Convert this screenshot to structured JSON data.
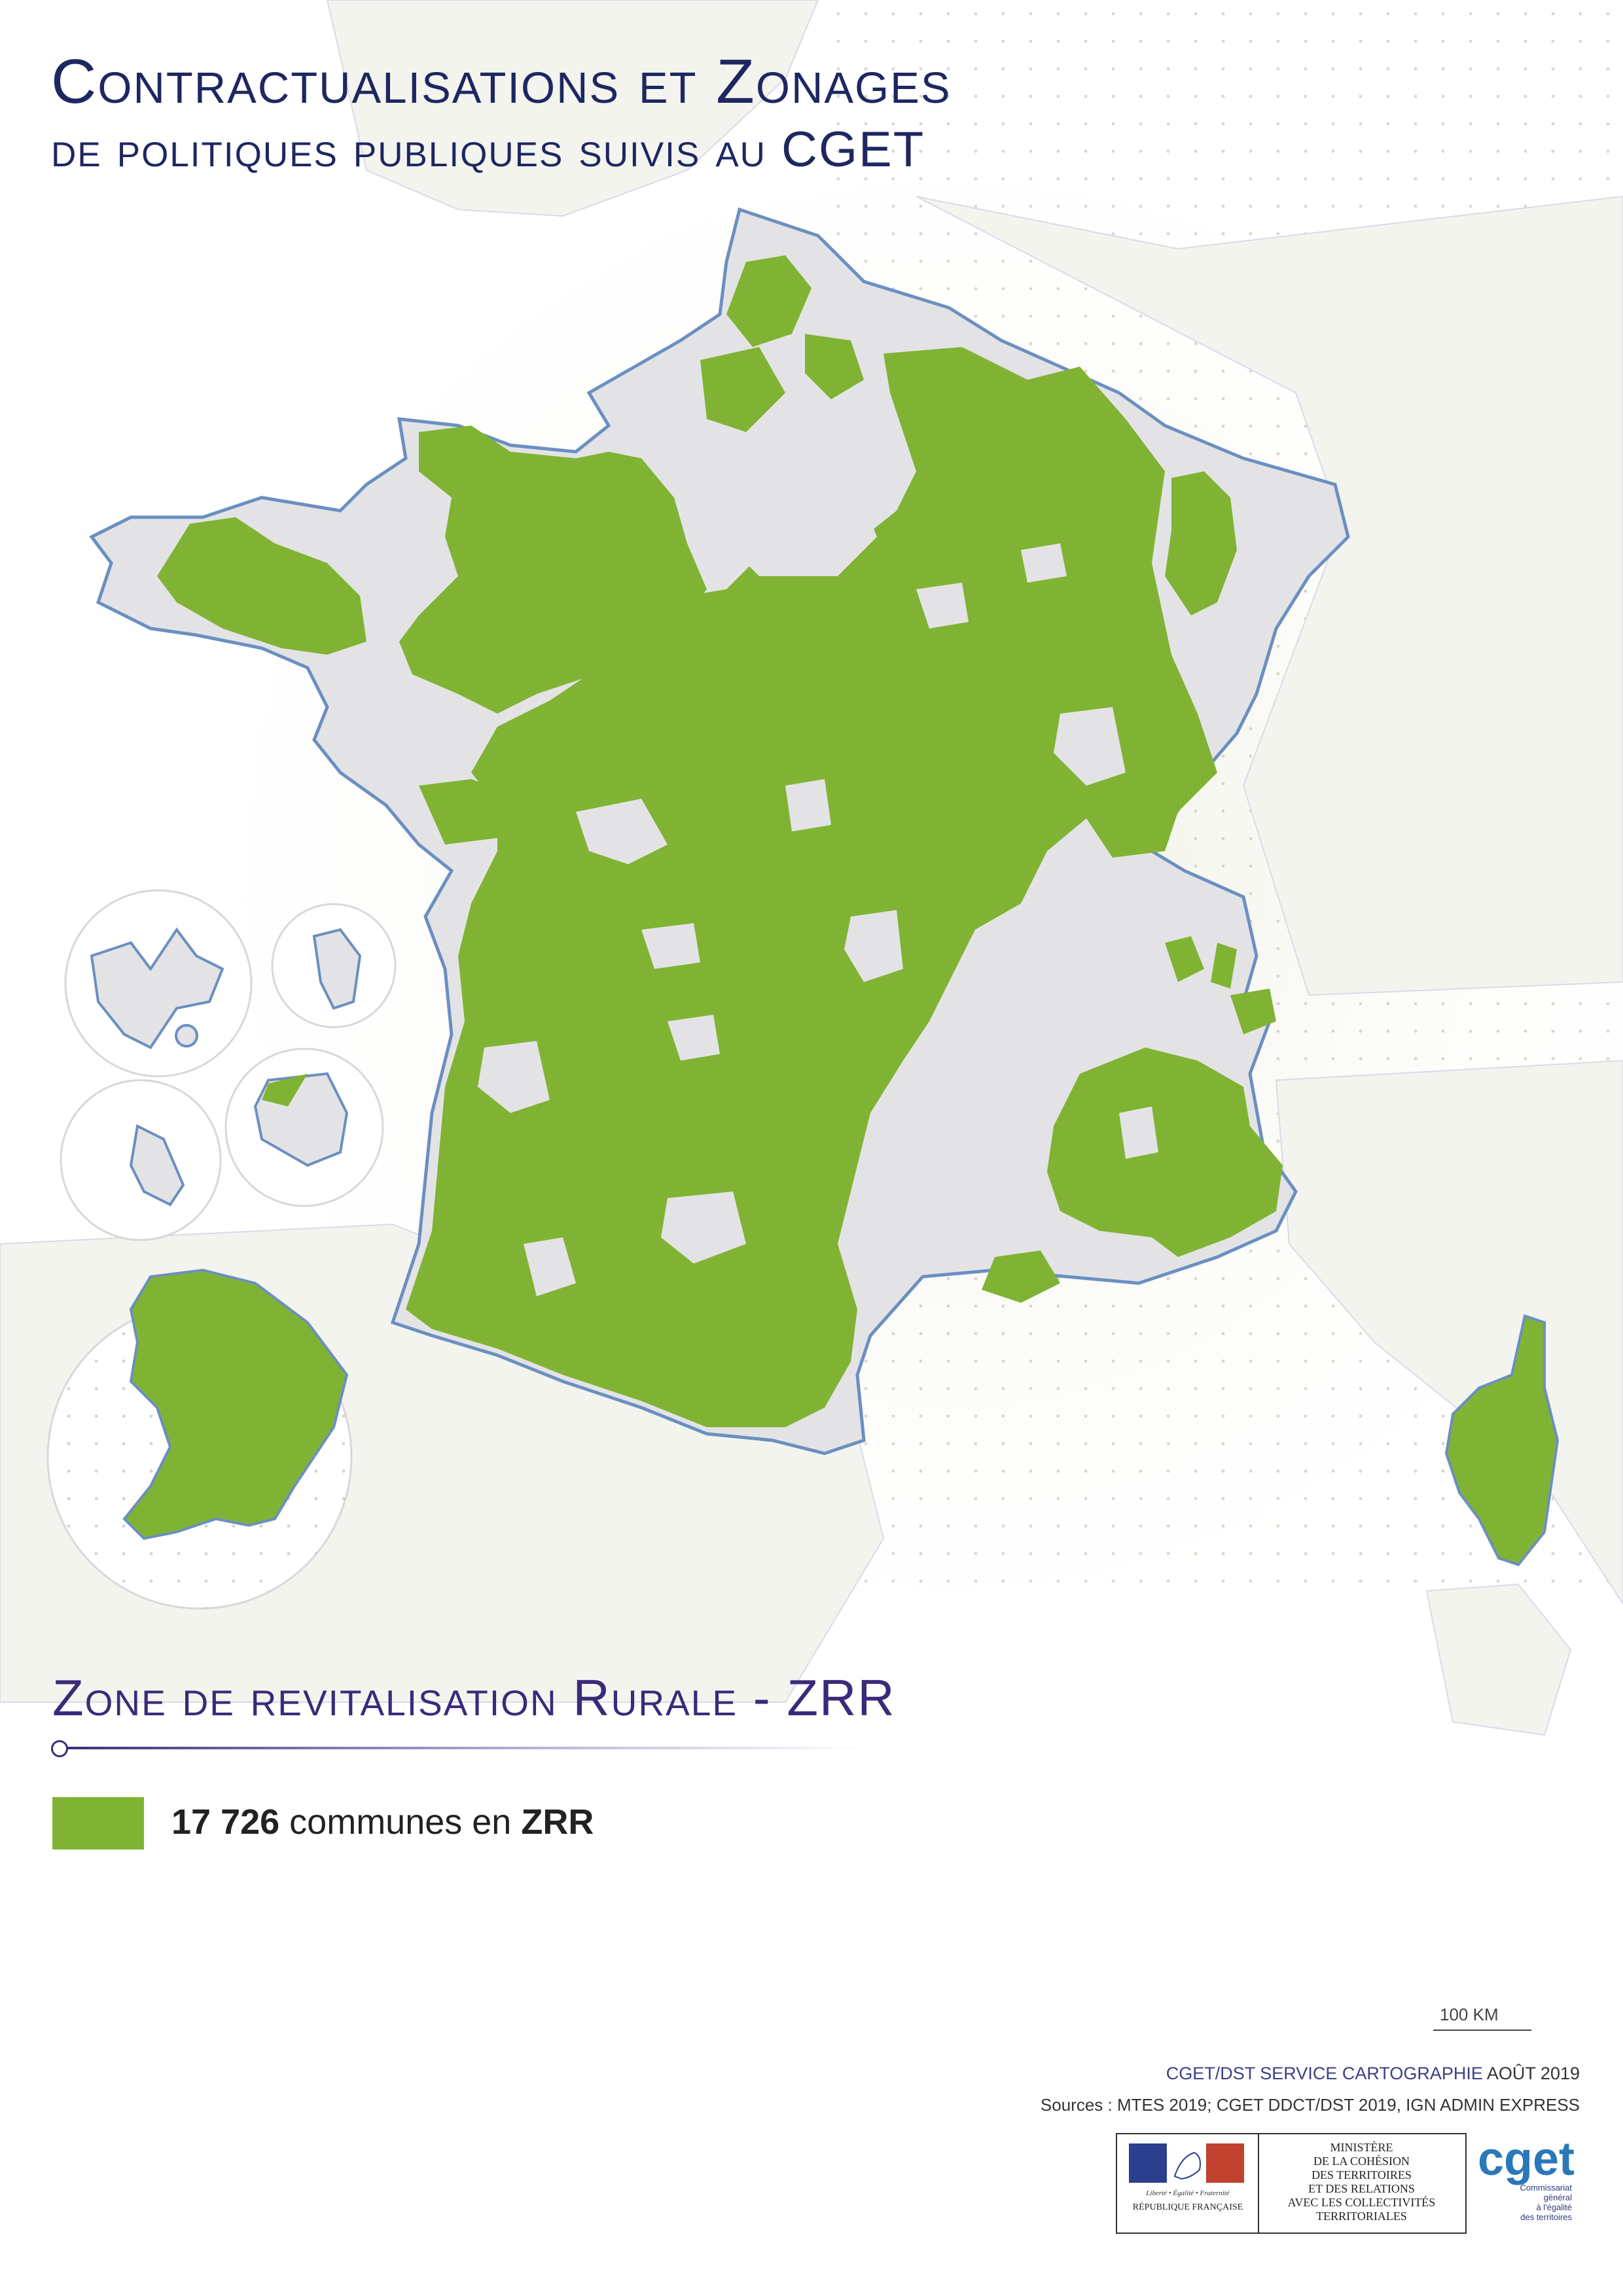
{
  "title": {
    "line1": "Contractualisations et Zonages",
    "line2": "de politiques publiques suivis au CGET"
  },
  "legend": {
    "heading": "Zone de revitalisation Rurale - ZRR",
    "count": "17 726",
    "text_middle": " communes en ",
    "zone_abbr": "ZRR",
    "swatch_color": "#80b333"
  },
  "map": {
    "zrr_color": "#80b333",
    "land_color": "#e3e3e6",
    "outline_color": "#6b8fc0"
  },
  "scale": {
    "label": "100 KM"
  },
  "credit": {
    "org": "CGET/DST",
    "service": "SERVICE CARTOGRAPHIE",
    "date": "AOÛT 2019"
  },
  "sources": "Sources : MTES 2019; CGET DDCT/DST 2019, IGN ADMIN EXPRESS",
  "logos": {
    "rf_motto": "Liberté • Égalité • Fraternité",
    "rf_name": "RÉPUBLIQUE FRANÇAISE",
    "ministry_lines": [
      "MINISTÈRE",
      "DE LA COHÉSION",
      "DES TERRITOIRES",
      "ET DES RELATIONS",
      "AVEC LES COLLECTIVITÉS",
      "TERRITORIALES"
    ],
    "cget_name": "cget",
    "cget_sub": [
      "Commissariat",
      "général",
      "à l'égalité",
      "des territoires"
    ]
  }
}
